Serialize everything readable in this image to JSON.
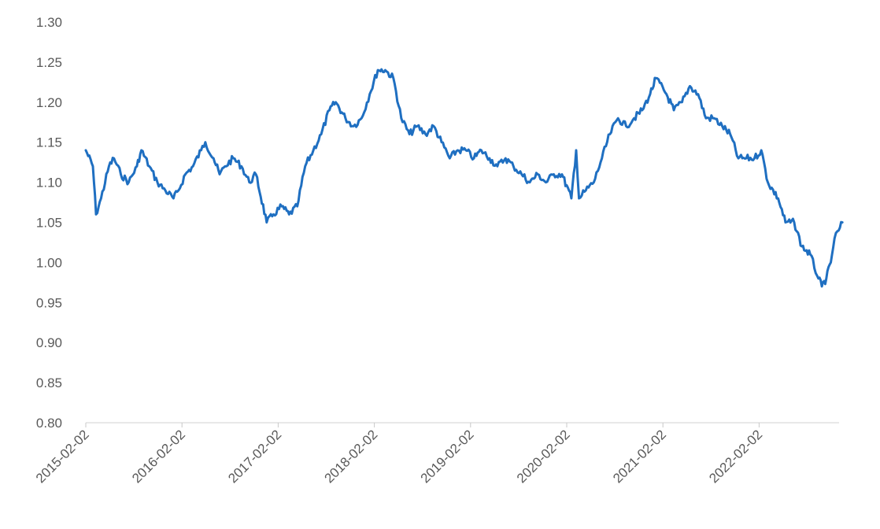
{
  "chart_data": {
    "type": "line",
    "title": "",
    "xlabel": "",
    "ylabel": "",
    "ylim": [
      0.8,
      1.3
    ],
    "y_ticks": [
      "0.80",
      "0.85",
      "0.90",
      "0.95",
      "1.00",
      "1.05",
      "1.10",
      "1.15",
      "1.20",
      "1.25",
      "1.30"
    ],
    "x_ticks": [
      "2015-02-02",
      "2016-02-02",
      "2017-02-02",
      "2018-02-02",
      "2019-02-02",
      "2020-02-02",
      "2021-02-02",
      "2022-02-02"
    ],
    "grid": false,
    "legend": "none",
    "line_color": "#1f6fc1",
    "series": [
      {
        "x": [
          "2015-02-02",
          "2015-03-01",
          "2015-03-13",
          "2015-04-01",
          "2015-05-01",
          "2015-05-20",
          "2015-06-15",
          "2015-07-15",
          "2015-08-15",
          "2015-09-01",
          "2015-10-01",
          "2015-11-01",
          "2015-12-01",
          "2016-01-01",
          "2016-01-20",
          "2016-02-15",
          "2016-03-15",
          "2016-04-15",
          "2016-05-01",
          "2016-06-01",
          "2016-06-24",
          "2016-07-15",
          "2016-08-15",
          "2016-09-15",
          "2016-10-15",
          "2016-11-09",
          "2016-12-20",
          "2017-01-15",
          "2017-02-15",
          "2017-03-15",
          "2017-04-15",
          "2017-05-15",
          "2017-06-15",
          "2017-07-15",
          "2017-08-15",
          "2017-09-08",
          "2017-10-15",
          "2017-11-15",
          "2017-12-15",
          "2018-01-15",
          "2018-02-15",
          "2018-03-15",
          "2018-04-15",
          "2018-05-15",
          "2018-06-15",
          "2018-07-15",
          "2018-08-15",
          "2018-09-15",
          "2018-10-15",
          "2018-11-15",
          "2018-12-15",
          "2019-01-15",
          "2019-02-15",
          "2019-03-15",
          "2019-04-15",
          "2019-05-15",
          "2019-06-15",
          "2019-07-15",
          "2019-08-15",
          "2019-09-15",
          "2019-10-15",
          "2019-11-15",
          "2019-12-15",
          "2020-01-15",
          "2020-02-20",
          "2020-03-09",
          "2020-03-20",
          "2020-04-15",
          "2020-05-15",
          "2020-06-15",
          "2020-07-15",
          "2020-08-15",
          "2020-09-15",
          "2020-10-15",
          "2020-11-15",
          "2020-12-15",
          "2021-01-06",
          "2021-02-15",
          "2021-03-15",
          "2021-04-15",
          "2021-05-15",
          "2021-06-15",
          "2021-07-15",
          "2021-08-15",
          "2021-09-15",
          "2021-10-15",
          "2021-11-15",
          "2021-12-15",
          "2022-01-15",
          "2022-02-10",
          "2022-03-07",
          "2022-04-15",
          "2022-05-13",
          "2022-06-15",
          "2022-07-14",
          "2022-08-15",
          "2022-09-15",
          "2022-09-28",
          "2022-10-15",
          "2022-11-01",
          "2022-11-15",
          "2022-12-01",
          "2022-12-15"
        ],
        "values": [
          1.14,
          1.12,
          1.06,
          1.08,
          1.12,
          1.13,
          1.11,
          1.1,
          1.12,
          1.14,
          1.12,
          1.1,
          1.09,
          1.08,
          1.09,
          1.11,
          1.12,
          1.14,
          1.15,
          1.13,
          1.11,
          1.12,
          1.13,
          1.12,
          1.1,
          1.11,
          1.05,
          1.06,
          1.07,
          1.06,
          1.07,
          1.12,
          1.14,
          1.16,
          1.19,
          1.2,
          1.18,
          1.17,
          1.18,
          1.21,
          1.24,
          1.24,
          1.23,
          1.18,
          1.16,
          1.17,
          1.16,
          1.17,
          1.15,
          1.13,
          1.14,
          1.14,
          1.13,
          1.14,
          1.13,
          1.12,
          1.13,
          1.12,
          1.11,
          1.1,
          1.11,
          1.1,
          1.11,
          1.11,
          1.08,
          1.14,
          1.08,
          1.09,
          1.1,
          1.13,
          1.16,
          1.18,
          1.17,
          1.18,
          1.19,
          1.21,
          1.23,
          1.21,
          1.19,
          1.2,
          1.22,
          1.21,
          1.18,
          1.18,
          1.17,
          1.16,
          1.13,
          1.13,
          1.13,
          1.14,
          1.1,
          1.08,
          1.05,
          1.05,
          1.02,
          1.01,
          0.98,
          0.97,
          0.98,
          1.0,
          1.03,
          1.04,
          1.05
        ]
      }
    ]
  }
}
